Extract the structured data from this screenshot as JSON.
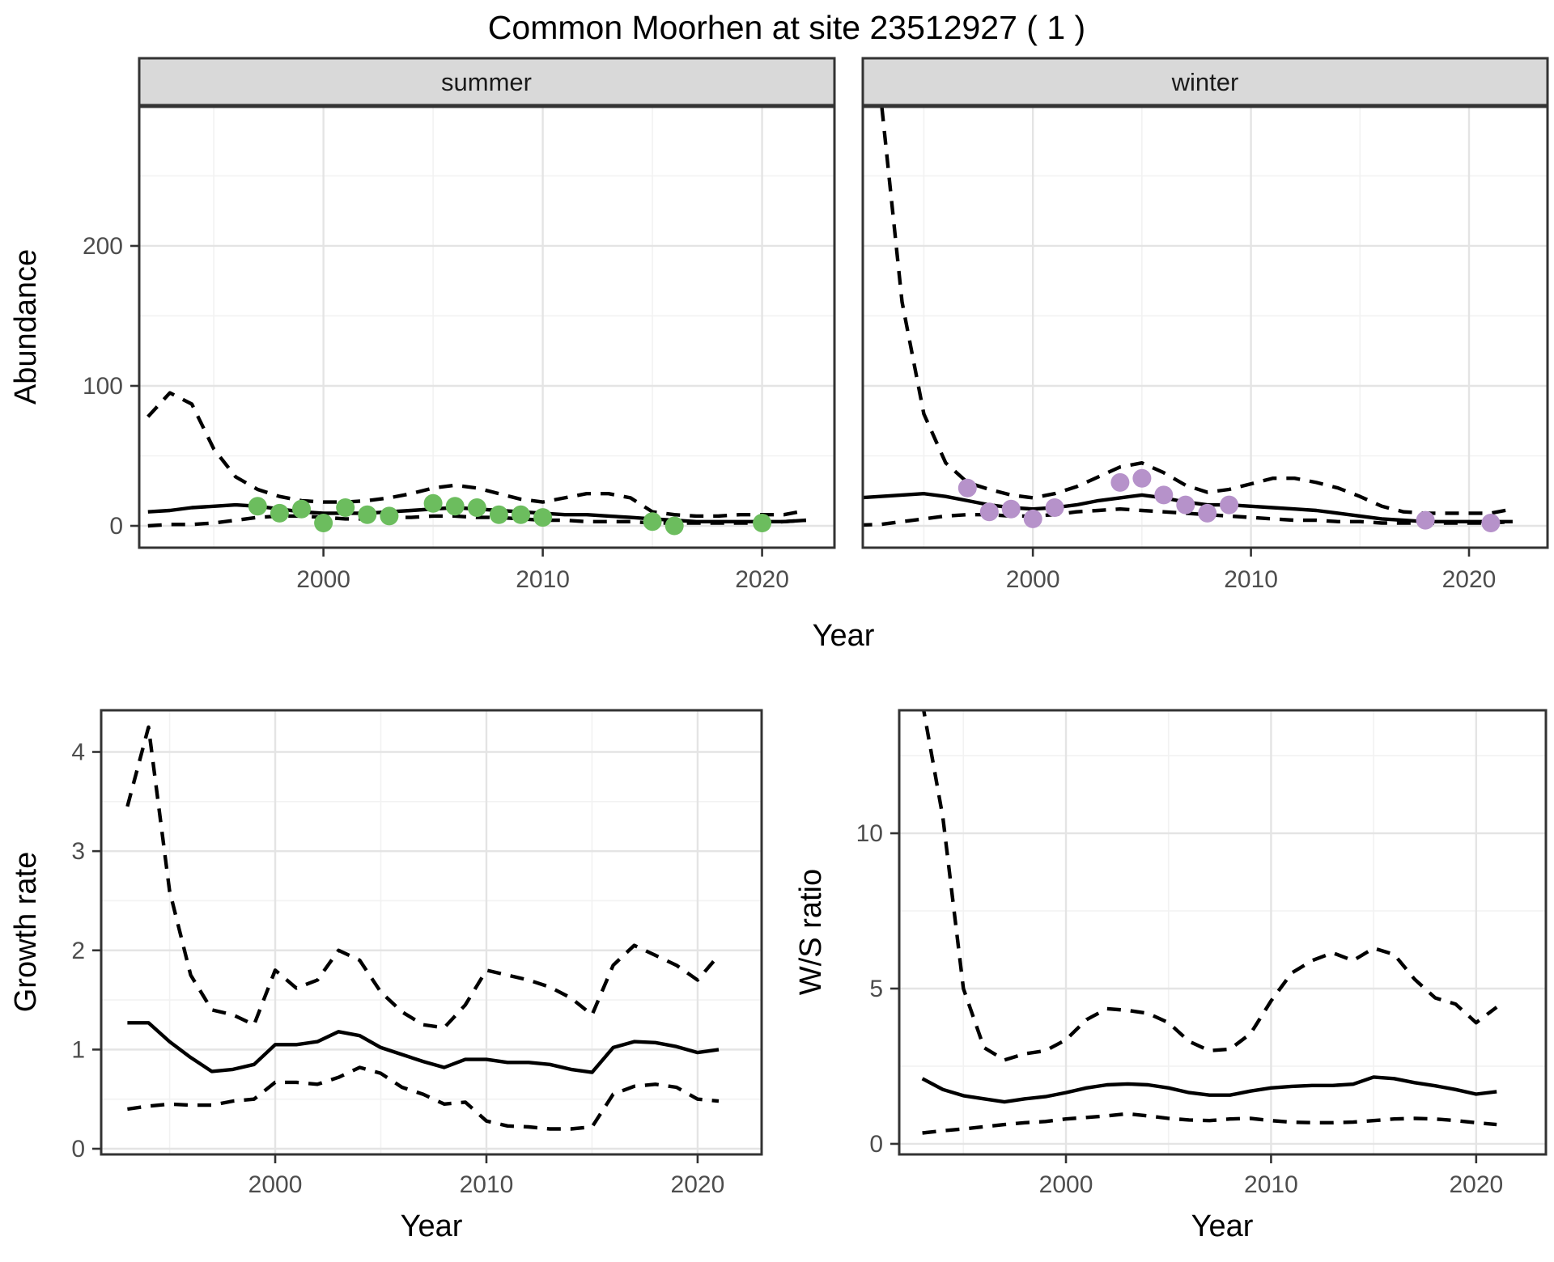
{
  "page": {
    "title": "Common Moorhen at site 23512927 ( 1 )"
  },
  "colors": {
    "summer_point": "#6cbd5e",
    "winter_point": "#b692ca",
    "line": "#000000",
    "grid_major": "#e4e4e4",
    "grid_minor": "#f2f2f2",
    "panel_border": "#333333",
    "strip_fill": "#d9d9d9",
    "axis_text": "#4d4d4d",
    "background": "#ffffff"
  },
  "chart_data": [
    {
      "id": "abundance_summer",
      "type": "line",
      "facet_label": "summer",
      "ylabel": "Abundance",
      "xlabel": "Year",
      "x_ticks": [
        2000,
        2010,
        2020
      ],
      "x_minor": [
        1995,
        2005,
        2015
      ],
      "y_ticks": [
        0,
        100,
        200
      ],
      "y_minor": [
        50,
        150,
        250
      ],
      "xlim": [
        1991.6,
        2023.3
      ],
      "ylim": [
        -15.6,
        299.4
      ],
      "grid": true,
      "legend": "none",
      "years": [
        1992,
        1993,
        1994,
        1995,
        1996,
        1997,
        1998,
        1999,
        2000,
        2001,
        2002,
        2003,
        2004,
        2005,
        2006,
        2007,
        2008,
        2009,
        2010,
        2011,
        2012,
        2013,
        2014,
        2015,
        2016,
        2017,
        2018,
        2019,
        2020,
        2021,
        2022
      ],
      "series": [
        {
          "name": "mean",
          "style": "solid",
          "values": [
            10,
            11,
            13,
            14,
            15,
            14,
            12,
            10,
            9,
            9,
            9,
            10,
            11,
            12,
            13,
            12,
            11,
            10,
            9,
            8,
            8,
            7,
            6,
            5,
            4,
            3,
            3,
            3,
            3,
            3,
            4
          ]
        },
        {
          "name": "upper_ci",
          "style": "dashed",
          "values": [
            78,
            95,
            87,
            55,
            35,
            26,
            21,
            18,
            17,
            17,
            18,
            20,
            23,
            27,
            29,
            27,
            23,
            19,
            17,
            20,
            23,
            23,
            20,
            10,
            8,
            7,
            7,
            8,
            8,
            8,
            11
          ]
        },
        {
          "name": "lower_ci",
          "style": "dashed",
          "values": [
            0,
            1,
            1,
            2,
            4,
            6,
            7,
            7,
            6,
            5,
            5,
            6,
            6,
            7,
            7,
            6,
            6,
            5,
            4,
            4,
            3,
            3,
            3,
            2,
            2,
            2,
            2,
            2,
            2,
            3,
            4
          ]
        }
      ],
      "points": {
        "name": "summer observed counts",
        "color": "#6cbd5e",
        "x": [
          1997,
          1998,
          1999,
          2000,
          2001,
          2002,
          2003,
          2005,
          2006,
          2007,
          2008,
          2009,
          2010,
          2015,
          2016,
          2020
        ],
        "y": [
          14,
          9,
          12,
          2,
          13,
          8,
          7,
          16,
          14,
          13,
          8,
          8,
          6,
          3,
          0,
          2
        ]
      }
    },
    {
      "id": "abundance_winter",
      "type": "line",
      "facet_label": "winter",
      "ylabel": "Abundance",
      "xlabel": "Year",
      "x_ticks": [
        2000,
        2010,
        2020
      ],
      "x_minor": [
        1995,
        2005,
        2015
      ],
      "y_ticks": [
        0,
        100,
        200
      ],
      "y_minor": [
        50,
        150,
        250
      ],
      "xlim": [
        1992.2,
        2023.6
      ],
      "ylim": [
        -15.6,
        299.4
      ],
      "grid": true,
      "legend": "none",
      "years": [
        1992,
        1993,
        1994,
        1995,
        1996,
        1997,
        1998,
        1999,
        2000,
        2001,
        2002,
        2003,
        2004,
        2005,
        2006,
        2007,
        2008,
        2009,
        2010,
        2011,
        2012,
        2013,
        2014,
        2015,
        2016,
        2017,
        2018,
        2019,
        2020,
        2021,
        2022
      ],
      "series": [
        {
          "name": "mean",
          "style": "solid",
          "values": [
            20,
            21,
            22,
            23,
            21,
            18,
            15,
            13,
            12,
            13,
            15,
            18,
            20,
            22,
            20,
            17,
            15,
            15,
            14,
            13,
            12,
            11,
            9,
            7,
            5,
            4,
            3,
            3,
            3,
            3,
            3
          ]
        },
        {
          "name": "upper_ci",
          "style": "dashed",
          "values": [
            600,
            310,
            160,
            80,
            45,
            31,
            26,
            22,
            20,
            23,
            28,
            35,
            42,
            45,
            38,
            29,
            24,
            26,
            30,
            34,
            34,
            31,
            27,
            21,
            14,
            10,
            9,
            9,
            9,
            9,
            12
          ]
        },
        {
          "name": "lower_ci",
          "style": "dashed",
          "values": [
            0.5,
            1,
            3,
            5,
            7,
            8,
            8,
            7,
            7,
            8,
            10,
            11,
            12,
            11,
            10,
            9,
            8,
            7,
            6,
            5,
            4,
            4,
            3,
            3,
            2,
            2,
            2,
            2,
            2,
            2,
            3
          ]
        }
      ],
      "points": {
        "name": "winter observed counts",
        "color": "#b692ca",
        "x": [
          1997,
          1998,
          1999,
          2000,
          2001,
          2004,
          2005,
          2006,
          2007,
          2008,
          2009,
          2018,
          2021
        ],
        "y": [
          27,
          10,
          12,
          5,
          13,
          31,
          34,
          22,
          15,
          9,
          15,
          4,
          2
        ]
      }
    },
    {
      "id": "growth_rate",
      "type": "line",
      "facet_label": "",
      "ylabel": "Growth rate",
      "xlabel": "Year",
      "x_ticks": [
        2000,
        2010,
        2020
      ],
      "x_minor": [
        1995,
        2005,
        2015
      ],
      "y_ticks": [
        0,
        1,
        2,
        3,
        4
      ],
      "y_minor": [
        0.5,
        1.5,
        2.5,
        3.5
      ],
      "xlim": [
        1991.76,
        2023.03
      ],
      "ylim": [
        -0.057,
        4.42
      ],
      "grid": true,
      "legend": "none",
      "years": [
        1993,
        1994,
        1995,
        1996,
        1997,
        1998,
        1999,
        2000,
        2001,
        2002,
        2003,
        2004,
        2005,
        2006,
        2007,
        2008,
        2009,
        2010,
        2011,
        2012,
        2013,
        2014,
        2015,
        2016,
        2017,
        2018,
        2019,
        2020,
        2021
      ],
      "series": [
        {
          "name": "mean",
          "style": "solid",
          "values": [
            1.27,
            1.27,
            1.08,
            0.92,
            0.78,
            0.8,
            0.85,
            1.05,
            1.05,
            1.08,
            1.18,
            1.14,
            1.02,
            0.95,
            0.88,
            0.82,
            0.9,
            0.9,
            0.87,
            0.87,
            0.85,
            0.8,
            0.77,
            1.02,
            1.08,
            1.07,
            1.03,
            0.97,
            1.0
          ]
        },
        {
          "name": "upper_ci",
          "style": "dashed",
          "values": [
            3.45,
            4.25,
            2.6,
            1.75,
            1.4,
            1.35,
            1.25,
            1.8,
            1.62,
            1.7,
            2.0,
            1.9,
            1.58,
            1.38,
            1.25,
            1.22,
            1.45,
            1.8,
            1.75,
            1.7,
            1.63,
            1.52,
            1.35,
            1.85,
            2.05,
            1.95,
            1.85,
            1.7,
            1.95
          ]
        },
        {
          "name": "lower_ci",
          "style": "dashed",
          "values": [
            0.4,
            0.43,
            0.45,
            0.44,
            0.44,
            0.48,
            0.5,
            0.67,
            0.67,
            0.65,
            0.72,
            0.82,
            0.76,
            0.62,
            0.55,
            0.45,
            0.47,
            0.28,
            0.23,
            0.22,
            0.2,
            0.2,
            0.22,
            0.55,
            0.63,
            0.65,
            0.62,
            0.5,
            0.48
          ]
        }
      ],
      "points": null
    },
    {
      "id": "ws_ratio",
      "type": "line",
      "facet_label": "",
      "ylabel": "W/S ratio",
      "xlabel": "Year",
      "x_ticks": [
        2000,
        2010,
        2020
      ],
      "x_minor": [
        1995,
        2005,
        2015
      ],
      "y_ticks": [
        0,
        5,
        10
      ],
      "y_minor": [
        2.5,
        7.5,
        12.5
      ],
      "xlim": [
        1991.87,
        2023.4
      ],
      "ylim": [
        -0.34,
        13.96
      ],
      "grid": true,
      "legend": "none",
      "years": [
        1993,
        1994,
        1995,
        1996,
        1997,
        1998,
        1999,
        2000,
        2001,
        2002,
        2003,
        2004,
        2005,
        2006,
        2007,
        2008,
        2009,
        2010,
        2011,
        2012,
        2013,
        2014,
        2015,
        2016,
        2017,
        2018,
        2019,
        2020,
        2021
      ],
      "series": [
        {
          "name": "mean",
          "style": "solid",
          "values": [
            2.1,
            1.75,
            1.55,
            1.45,
            1.35,
            1.45,
            1.52,
            1.65,
            1.8,
            1.9,
            1.93,
            1.9,
            1.8,
            1.65,
            1.57,
            1.57,
            1.7,
            1.8,
            1.85,
            1.88,
            1.88,
            1.92,
            2.15,
            2.1,
            1.97,
            1.87,
            1.75,
            1.6,
            1.68
          ]
        },
        {
          "name": "upper_ci",
          "style": "dashed",
          "values": [
            14.2,
            10.5,
            5.0,
            3.1,
            2.7,
            2.9,
            3.0,
            3.35,
            4.0,
            4.35,
            4.3,
            4.2,
            3.9,
            3.3,
            3.0,
            3.05,
            3.55,
            4.6,
            5.5,
            5.9,
            6.15,
            5.9,
            6.3,
            6.1,
            5.3,
            4.7,
            4.5,
            3.9,
            4.4
          ]
        },
        {
          "name": "lower_ci",
          "style": "dashed",
          "values": [
            0.35,
            0.42,
            0.48,
            0.55,
            0.62,
            0.68,
            0.72,
            0.8,
            0.85,
            0.9,
            0.97,
            0.9,
            0.82,
            0.77,
            0.75,
            0.8,
            0.82,
            0.75,
            0.7,
            0.68,
            0.68,
            0.7,
            0.75,
            0.8,
            0.82,
            0.8,
            0.75,
            0.68,
            0.62
          ]
        }
      ],
      "points": null
    }
  ]
}
